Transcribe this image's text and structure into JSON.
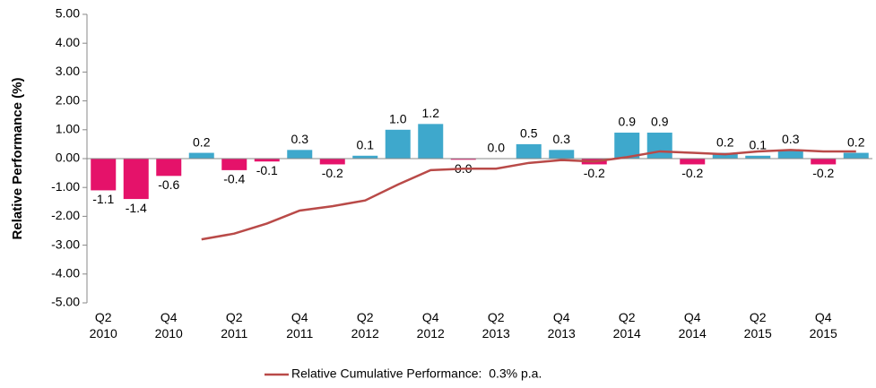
{
  "chart_data": {
    "type": "bar_line",
    "y_label": "Relative Performance (%)",
    "categories": [
      "Q2 2010",
      null,
      "Q4 2010",
      null,
      "Q2 2011",
      null,
      "Q4 2011",
      null,
      "Q2 2012",
      null,
      "Q4 2012",
      null,
      "Q2 2013",
      null,
      "Q4 2013",
      null,
      "Q2 2014",
      null,
      "Q4 2014",
      null,
      "Q2 2015",
      null,
      "Q4 2015",
      null
    ],
    "values": [
      -1.1,
      -1.4,
      -0.6,
      0.2,
      -0.4,
      -0.1,
      0.3,
      -0.2,
      0.1,
      1.0,
      1.2,
      -0.04,
      0.0,
      0.5,
      0.3,
      -0.2,
      0.9,
      0.9,
      -0.2,
      0.2,
      0.1,
      0.3,
      -0.2,
      0.2
    ],
    "value_labels": [
      "-1.1",
      "-1.4",
      "-0.6",
      "0.2",
      "-0.4",
      "-0.1",
      "0.3",
      "-0.2",
      "0.1",
      "1.0",
      "1.2",
      "0.0",
      "0.0",
      "0.5",
      "0.3",
      "-0.2",
      "0.9",
      "0.9",
      "-0.2",
      "0.2",
      "0.1",
      "0.3",
      "-0.2",
      "0.2"
    ],
    "positive_color": "#3ea8cc",
    "negative_color": "#e5126a",
    "series": [
      {
        "name": "Relative Cumulative Performance:  0.3% p.a.",
        "color": "#b94a48",
        "values": [
          null,
          null,
          null,
          -2.8,
          -2.6,
          -2.25,
          -1.8,
          -1.65,
          -1.45,
          -0.9,
          -0.4,
          -0.35,
          -0.35,
          -0.15,
          -0.05,
          -0.1,
          0.05,
          0.25,
          0.2,
          0.15,
          0.25,
          0.3,
          0.25,
          0.25
        ]
      }
    ],
    "ylim": [
      -5,
      5
    ],
    "yticks": [
      {
        "value": -5,
        "label": "-5.00"
      },
      {
        "value": -4,
        "label": "-4.00"
      },
      {
        "value": -3,
        "label": "-3.00"
      },
      {
        "value": -2,
        "label": "-2.00"
      },
      {
        "value": -1,
        "label": "-1.00"
      },
      {
        "value": 0,
        "label": "0.00"
      },
      {
        "value": 1,
        "label": "1.00"
      },
      {
        "value": 2,
        "label": "2.00"
      },
      {
        "value": 3,
        "label": "3.00"
      },
      {
        "value": 4,
        "label": "4.00"
      },
      {
        "value": 5,
        "label": "5.00"
      }
    ],
    "legend": "bottom",
    "grid": false
  }
}
